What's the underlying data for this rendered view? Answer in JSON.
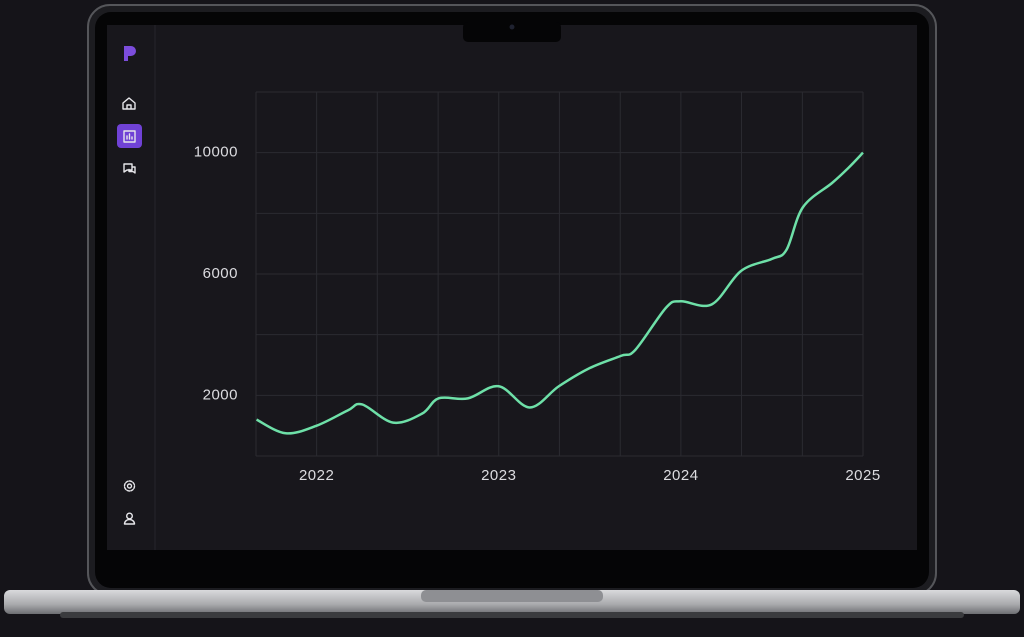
{
  "chart_data": {
    "type": "line",
    "x": [
      2021.67,
      2021.83,
      2022.0,
      2022.17,
      2022.25,
      2022.42,
      2022.58,
      2022.67,
      2022.83,
      2023.0,
      2023.17,
      2023.33,
      2023.5,
      2023.67,
      2023.75,
      2023.92,
      2024.0,
      2024.17,
      2024.33,
      2024.5,
      2024.58,
      2024.67,
      2024.83,
      2024.92,
      2025.0
    ],
    "values": [
      1200,
      750,
      1000,
      1500,
      1700,
      1100,
      1400,
      1900,
      1900,
      2300,
      1600,
      2300,
      2900,
      3300,
      3500,
      4900,
      5100,
      5000,
      6100,
      6500,
      6800,
      8200,
      9000,
      9500,
      10000
    ],
    "color": "#6ee0a8",
    "xlim": [
      2021.667,
      2025
    ],
    "xticks": [
      2022,
      2023,
      2024,
      2025
    ],
    "minor_xticks": [
      2021.667,
      2022.333,
      2022.667,
      2023.333,
      2023.667,
      2024.333,
      2024.667
    ],
    "ylim": [
      0,
      12000
    ],
    "yticks": [
      2000,
      6000,
      10000
    ],
    "minor_yticks": [
      0,
      4000,
      8000,
      12000
    ],
    "grid": true
  }
}
